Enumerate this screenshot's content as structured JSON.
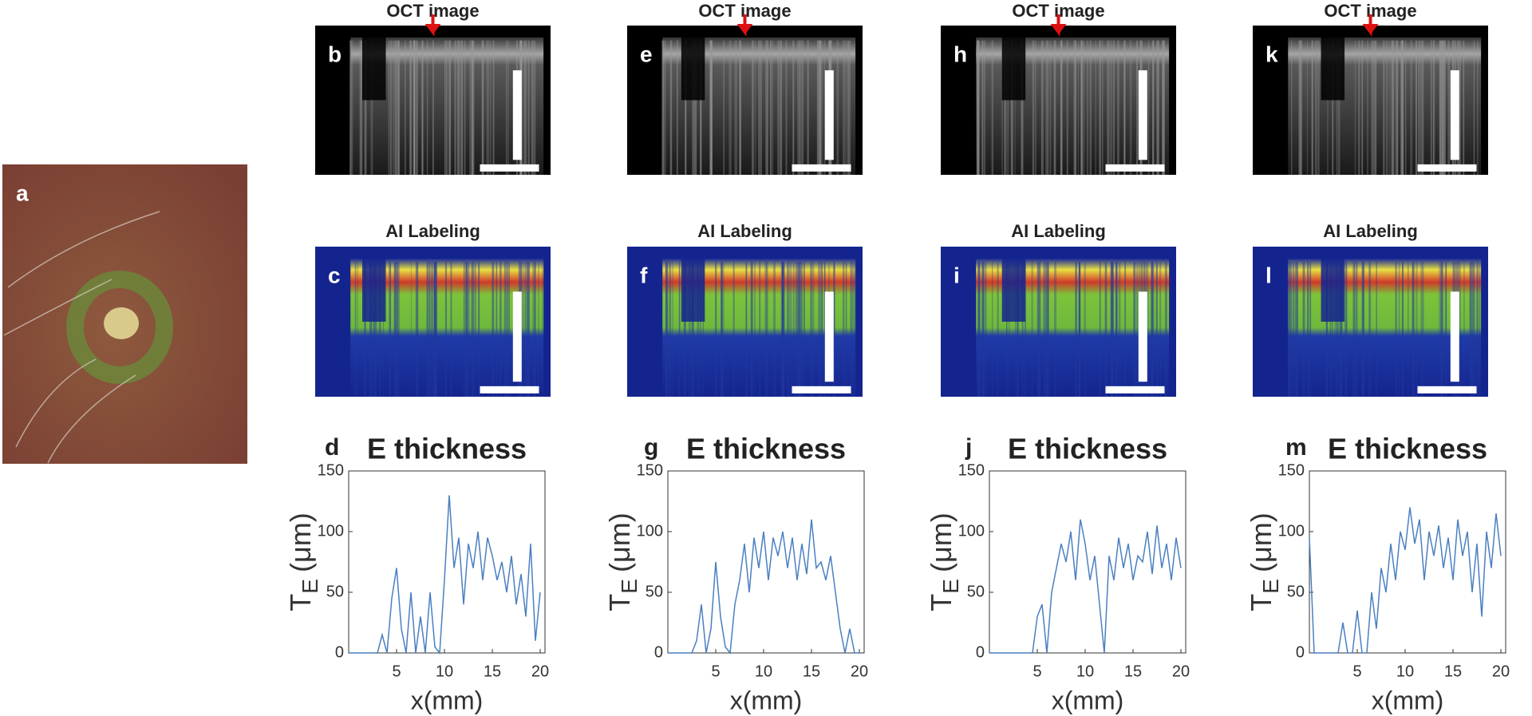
{
  "photo": {
    "label": "a"
  },
  "images": [
    {
      "label": "b",
      "title": "OCT image"
    },
    {
      "label": "c",
      "title": "AI Labeling"
    },
    {
      "label": "e",
      "title": "OCT image"
    },
    {
      "label": "f",
      "title": "AI Labeling"
    },
    {
      "label": "h",
      "title": "OCT image"
    },
    {
      "label": "i",
      "title": "AI Labeling"
    },
    {
      "label": "k",
      "title": "OCT image"
    },
    {
      "label": "l",
      "title": "AI Labeling"
    }
  ],
  "chart_data": [
    {
      "type": "line",
      "panel": "d",
      "title": "E thickness",
      "ylabel": {
        "main": "T",
        "sub": "E",
        "unit": "(μm)"
      },
      "xlabel": "x(mm)",
      "color": "#4a7fc1",
      "x": [
        0,
        0.5,
        1,
        1.5,
        2,
        2.5,
        3,
        3.5,
        4,
        4.5,
        5,
        5.5,
        6,
        6.5,
        7,
        7.5,
        8,
        8.5,
        9,
        9.5,
        10,
        10.5,
        11,
        11.5,
        12,
        12.5,
        13,
        13.5,
        14,
        14.5,
        15,
        15.5,
        16,
        16.5,
        17,
        17.5,
        18,
        18.5,
        19,
        19.5,
        20
      ],
      "values": [
        0,
        0,
        0,
        0,
        0,
        0,
        0,
        15,
        0,
        45,
        70,
        20,
        0,
        50,
        0,
        30,
        0,
        50,
        5,
        0,
        60,
        130,
        70,
        95,
        40,
        90,
        70,
        100,
        60,
        95,
        80,
        60,
        75,
        50,
        80,
        40,
        65,
        30,
        90,
        10,
        50
      ],
      "xlim": [
        0,
        20.5
      ],
      "ylim": [
        0,
        150
      ],
      "xticks": [
        5,
        10,
        15,
        20
      ],
      "yticks": [
        0,
        50,
        100,
        150
      ]
    },
    {
      "type": "line",
      "panel": "g",
      "title": "E thickness",
      "ylabel": {
        "main": "T",
        "sub": "E",
        "unit": "(μm)"
      },
      "xlabel": "x(mm)",
      "color": "#4a7fc1",
      "x": [
        0,
        0.5,
        1,
        1.5,
        2,
        2.5,
        3,
        3.5,
        4,
        4.5,
        5,
        5.5,
        6,
        6.5,
        7,
        7.5,
        8,
        8.5,
        9,
        9.5,
        10,
        10.5,
        11,
        11.5,
        12,
        12.5,
        13,
        13.5,
        14,
        14.5,
        15,
        15.5,
        16,
        16.5,
        17,
        17.5,
        18,
        18.5,
        19,
        19.5,
        20
      ],
      "values": [
        0,
        0,
        0,
        0,
        0,
        0,
        10,
        40,
        0,
        20,
        75,
        30,
        5,
        0,
        40,
        60,
        90,
        50,
        95,
        70,
        100,
        60,
        95,
        80,
        100,
        70,
        95,
        60,
        90,
        65,
        110,
        70,
        75,
        60,
        80,
        50,
        20,
        0,
        20,
        0,
        0
      ],
      "xlim": [
        0,
        20.5
      ],
      "ylim": [
        0,
        150
      ],
      "xticks": [
        5,
        10,
        15,
        20
      ],
      "yticks": [
        0,
        50,
        100,
        150
      ]
    },
    {
      "type": "line",
      "panel": "j",
      "title": "E thickness",
      "ylabel": {
        "main": "T",
        "sub": "E",
        "unit": "(μm)"
      },
      "xlabel": "x(mm)",
      "color": "#4a7fc1",
      "x": [
        0,
        0.5,
        1,
        1.5,
        2,
        2.5,
        3,
        3.5,
        4,
        4.5,
        5,
        5.5,
        6,
        6.5,
        7,
        7.5,
        8,
        8.5,
        9,
        9.5,
        10,
        10.5,
        11,
        11.5,
        12,
        12.5,
        13,
        13.5,
        14,
        14.5,
        15,
        15.5,
        16,
        16.5,
        17,
        17.5,
        18,
        18.5,
        19,
        19.5,
        20
      ],
      "values": [
        0,
        0,
        0,
        0,
        0,
        0,
        0,
        0,
        0,
        0,
        30,
        40,
        0,
        50,
        70,
        90,
        75,
        100,
        60,
        110,
        90,
        60,
        80,
        40,
        0,
        80,
        60,
        95,
        70,
        90,
        60,
        80,
        75,
        100,
        65,
        105,
        70,
        90,
        60,
        95,
        70
      ],
      "xlim": [
        0,
        20.5
      ],
      "ylim": [
        0,
        150
      ],
      "xticks": [
        5,
        10,
        15,
        20
      ],
      "yticks": [
        0,
        50,
        100,
        150
      ]
    },
    {
      "type": "line",
      "panel": "m",
      "title": "E thickness",
      "ylabel": {
        "main": "T",
        "sub": "E",
        "unit": "(μm)"
      },
      "xlabel": "x(mm)",
      "color": "#4a7fc1",
      "x": [
        0,
        0.5,
        1,
        1.5,
        2,
        2.5,
        3,
        3.5,
        4,
        4.5,
        5,
        5.5,
        6,
        6.5,
        7,
        7.5,
        8,
        8.5,
        9,
        9.5,
        10,
        10.5,
        11,
        11.5,
        12,
        12.5,
        13,
        13.5,
        14,
        14.5,
        15,
        15.5,
        16,
        16.5,
        17,
        17.5,
        18,
        18.5,
        19,
        19.5,
        20
      ],
      "values": [
        95,
        0,
        0,
        0,
        0,
        0,
        0,
        25,
        0,
        0,
        35,
        0,
        0,
        50,
        20,
        70,
        50,
        90,
        60,
        100,
        85,
        120,
        90,
        110,
        60,
        100,
        80,
        105,
        70,
        95,
        60,
        110,
        80,
        100,
        50,
        90,
        30,
        100,
        70,
        115,
        80
      ],
      "xlim": [
        0,
        20.5
      ],
      "ylim": [
        0,
        150
      ],
      "xticks": [
        5,
        10,
        15,
        20
      ],
      "yticks": [
        0,
        50,
        100,
        150
      ]
    }
  ]
}
